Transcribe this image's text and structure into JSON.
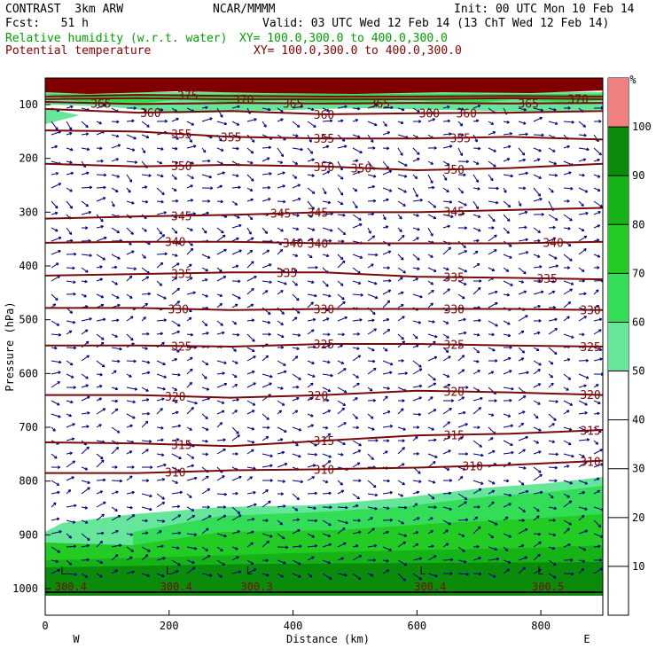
{
  "header": {
    "model": "CONTRAST  3km ARW",
    "org": "NCAR/MMMM",
    "init": "Init: 00 UTC Mon 10 Feb 14",
    "fcst": "Fcst:   51 h",
    "valid": "Valid: 03 UTC Wed 12 Feb 14 (13 ChT Wed 12 Feb 14)",
    "field1": "Relative humidity (w.r.t. water)",
    "field1_xy": "XY= 100.0,300.0 to 400.0,300.0",
    "field2": "Potential temperature",
    "field2_xy": "XY= 100.0,300.0 to 400.0,300.0"
  },
  "colors": {
    "rh_field_text": "#00a000",
    "theta_field_text": "#8b0000",
    "theta_contour": "#7a0a0a",
    "wind_vector": "#000080",
    "high_theta_fill": "#800000"
  },
  "chart_data": {
    "type": "cross-section",
    "xlabel": "Distance (km)",
    "ylabel": "Pressure (hPa)",
    "xlim": [
      0,
      900
    ],
    "ylim": [
      1010,
      50
    ],
    "x_ticks": [
      0,
      200,
      400,
      600,
      800
    ],
    "y_ticks": [
      100,
      200,
      300,
      400,
      500,
      600,
      700,
      800,
      900,
      1000
    ],
    "x_end_labels": {
      "left": "W",
      "right": "E"
    },
    "colorbar": {
      "unit": "%",
      "ticks": [
        10,
        20,
        30,
        40,
        50,
        60,
        70,
        80,
        90,
        100
      ],
      "bands": [
        {
          "from": 50,
          "to": 60,
          "color": "#66e699"
        },
        {
          "from": 60,
          "to": 70,
          "color": "#33dd55"
        },
        {
          "from": 70,
          "to": 80,
          "color": "#22cc22"
        },
        {
          "from": 80,
          "to": 90,
          "color": "#16b316"
        },
        {
          "from": 90,
          "to": 100,
          "color": "#0a8c0a"
        },
        {
          "from": 100,
          "to": 110,
          "color": "#f08080"
        }
      ]
    },
    "theta_contours": [
      {
        "value": "310",
        "p": [
          785,
          785,
          780,
          778,
          775,
          770,
          762
        ],
        "labels": [
          [
            210,
            "310"
          ],
          [
            450,
            "310"
          ],
          [
            690,
            "310"
          ],
          [
            880,
            "310"
          ]
        ]
      },
      {
        "value": "315",
        "p": [
          728,
          730,
          735,
          725,
          715,
          712,
          705
        ],
        "labels": [
          [
            220,
            "315"
          ],
          [
            450,
            "315"
          ],
          [
            660,
            "315"
          ],
          [
            880,
            "315"
          ]
        ]
      },
      {
        "value": "320",
        "p": [
          640,
          640,
          645,
          640,
          632,
          635,
          640
        ],
        "labels": [
          [
            210,
            "320"
          ],
          [
            440,
            "320"
          ],
          [
            660,
            "320"
          ],
          [
            880,
            "320"
          ]
        ]
      },
      {
        "value": "325",
        "p": [
          548,
          548,
          550,
          545,
          545,
          548,
          550
        ],
        "labels": [
          [
            220,
            "325"
          ],
          [
            450,
            "325"
          ],
          [
            660,
            "325"
          ],
          [
            880,
            "325"
          ]
        ]
      },
      {
        "value": "330",
        "p": [
          478,
          478,
          482,
          480,
          480,
          480,
          482
        ],
        "labels": [
          [
            215,
            "330"
          ],
          [
            450,
            "330"
          ],
          [
            660,
            "330"
          ],
          [
            880,
            "330"
          ]
        ]
      },
      {
        "value": "335",
        "p": [
          418,
          415,
          412,
          412,
          420,
          422,
          425
        ],
        "labels": [
          [
            220,
            "335"
          ],
          [
            390,
            "335"
          ],
          [
            660,
            "335"
          ],
          [
            810,
            "335"
          ]
        ]
      },
      {
        "value": "340",
        "p": [
          357,
          355,
          355,
          358,
          358,
          358,
          355
        ],
        "labels": [
          [
            210,
            "340"
          ],
          [
            400,
            "340"
          ],
          [
            440,
            "340"
          ],
          [
            820,
            "340"
          ]
        ]
      },
      {
        "value": "345",
        "p": [
          312,
          308,
          305,
          300,
          300,
          296,
          292
        ],
        "labels": [
          [
            220,
            "345"
          ],
          [
            380,
            "345"
          ],
          [
            440,
            "345"
          ],
          [
            660,
            "345"
          ]
        ]
      },
      {
        "value": "350",
        "p": [
          210,
          215,
          212,
          215,
          222,
          218,
          210
        ],
        "labels": [
          [
            220,
            "350"
          ],
          [
            450,
            "350"
          ],
          [
            510,
            "350"
          ],
          [
            660,
            "350"
          ]
        ]
      },
      {
        "value": "355",
        "p": [
          148,
          150,
          160,
          163,
          163,
          160,
          165
        ],
        "labels": [
          [
            220,
            "355"
          ],
          [
            300,
            "355"
          ],
          [
            450,
            "355"
          ],
          [
            670,
            "355"
          ]
        ]
      },
      {
        "value": "360",
        "p": [
          108,
          115,
          112,
          118,
          116,
          115,
          112
        ],
        "labels": [
          [
            170,
            "360"
          ],
          [
            450,
            "360"
          ],
          [
            620,
            "360"
          ],
          [
            680,
            "360"
          ]
        ]
      },
      {
        "value": "365",
        "p": [
          95,
          99,
          97,
          98,
          97,
          98,
          97
        ],
        "labels": [
          [
            90,
            "365"
          ],
          [
            400,
            "365"
          ],
          [
            540,
            "365"
          ],
          [
            780,
            "365"
          ]
        ]
      },
      {
        "value": "370",
        "p": [
          90,
          88,
          90,
          90,
          90,
          88,
          90
        ],
        "labels": [
          [
            320,
            "370"
          ],
          [
            860,
            "370"
          ]
        ]
      },
      {
        "value": "375",
        "p": [
          85,
          82,
          84,
          85,
          85,
          84,
          85
        ],
        "labels": [
          [
            230,
            "375"
          ]
        ]
      }
    ],
    "surface_theta": [
      {
        "x": 30,
        "letter": "L",
        "value": "300.4"
      },
      {
        "x": 200,
        "letter": "L",
        "value": "300.4"
      },
      {
        "x": 330,
        "letter": "L",
        "value": "300.3"
      },
      {
        "x": 610,
        "letter": "L",
        "value": "300.4"
      },
      {
        "x": 800,
        "letter": "L",
        "value": "300.5"
      }
    ]
  }
}
